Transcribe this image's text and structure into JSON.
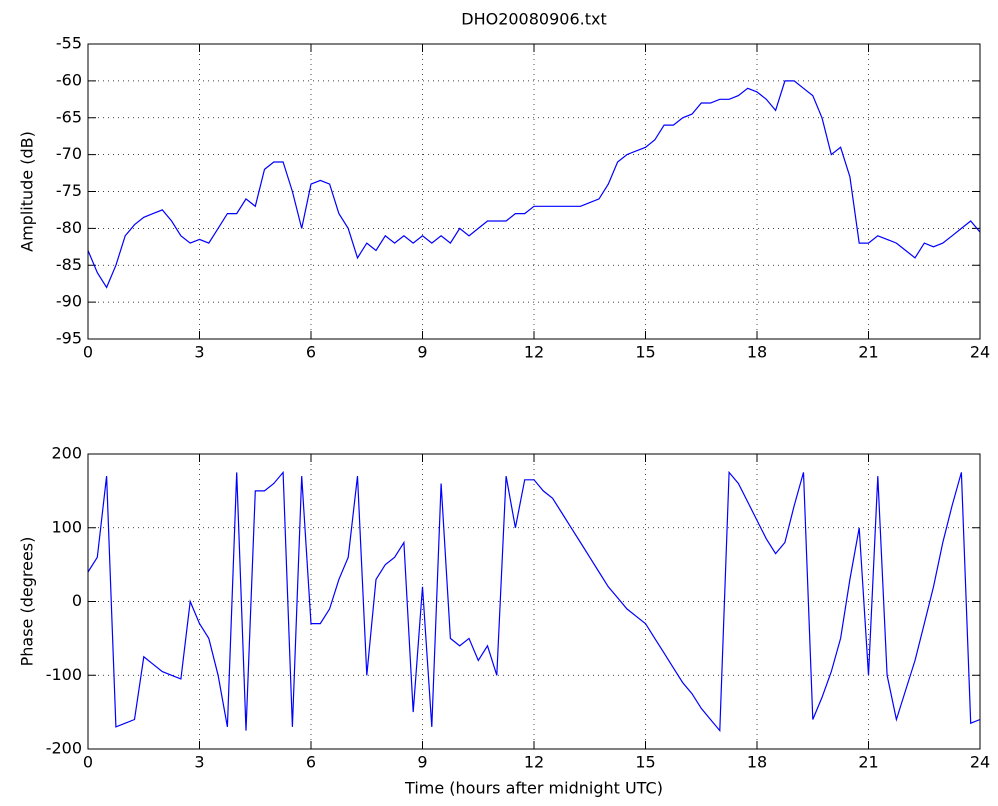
{
  "chart_data": [
    {
      "type": "line",
      "title": "DHO20080906.txt",
      "ylabel": "Amplitude (dB)",
      "x": [
        0,
        0.25,
        0.5,
        0.75,
        1,
        1.25,
        1.5,
        1.75,
        2,
        2.25,
        2.5,
        2.75,
        3,
        3.25,
        3.5,
        3.75,
        4,
        4.25,
        4.5,
        4.75,
        5,
        5.25,
        5.5,
        5.75,
        6,
        6.25,
        6.5,
        6.75,
        7,
        7.25,
        7.5,
        7.75,
        8,
        8.25,
        8.5,
        8.75,
        9,
        9.25,
        9.5,
        9.75,
        10,
        10.25,
        10.5,
        10.75,
        11,
        11.25,
        11.5,
        11.75,
        12,
        12.25,
        12.5,
        12.75,
        13,
        13.25,
        13.5,
        13.75,
        14,
        14.25,
        14.5,
        14.75,
        15,
        15.25,
        15.5,
        15.75,
        16,
        16.25,
        16.5,
        16.75,
        17,
        17.25,
        17.5,
        17.75,
        18,
        18.25,
        18.5,
        18.75,
        19,
        19.25,
        19.5,
        19.75,
        20,
        20.25,
        20.5,
        20.75,
        21,
        21.25,
        21.5,
        21.75,
        22,
        22.25,
        22.5,
        22.75,
        23,
        23.25,
        23.5,
        23.75,
        24
      ],
      "series": [
        {
          "color": "#0000ff",
          "values": [
            -83,
            -86,
            -88,
            -85,
            -81,
            -79.5,
            -78.5,
            -78,
            -77.5,
            -79,
            -81,
            -82,
            -81.5,
            -82,
            -80,
            -78,
            -78,
            -76,
            -77,
            -72,
            -71,
            -71,
            -75,
            -80,
            -74,
            -73.5,
            -74,
            -78,
            -80,
            -84,
            -82,
            -83,
            -81,
            -82,
            -81,
            -82,
            -81,
            -82,
            -81,
            -82,
            -80,
            -81,
            -80,
            -79,
            -79,
            -79,
            -78,
            -78,
            -77,
            -77,
            -77,
            -77,
            -77,
            -77,
            -76.5,
            -76,
            -74,
            -71,
            -70,
            -69.5,
            -69,
            -68,
            -66,
            -66,
            -65,
            -64.5,
            -63,
            -63,
            -62.5,
            -62.5,
            -62,
            -61,
            -61.5,
            -62.5,
            -64,
            -60,
            -60,
            -61,
            -62,
            -65,
            -70,
            -69,
            -73,
            -82,
            -82,
            -81,
            -81.5,
            -82,
            -83,
            -84,
            -82,
            -82.5,
            -82,
            -81,
            -80,
            -79,
            -80.5
          ]
        }
      ],
      "xlim": [
        0,
        24
      ],
      "xticks": [
        0,
        3,
        6,
        9,
        12,
        15,
        18,
        21,
        24
      ],
      "ylim": [
        -95,
        -55
      ],
      "yticks": [
        -95,
        -90,
        -85,
        -80,
        -75,
        -70,
        -65,
        -60,
        -55
      ],
      "grid": true
    },
    {
      "type": "line",
      "ylabel": "Phase (degrees)",
      "xlabel": "Time (hours after midnight UTC)",
      "x": [
        0,
        0.25,
        0.5,
        0.75,
        1,
        1.25,
        1.5,
        1.75,
        2,
        2.25,
        2.5,
        2.75,
        3,
        3.25,
        3.5,
        3.75,
        4,
        4.25,
        4.5,
        4.75,
        5,
        5.25,
        5.5,
        5.75,
        6,
        6.25,
        6.5,
        6.75,
        7,
        7.25,
        7.5,
        7.75,
        8,
        8.25,
        8.5,
        8.75,
        9,
        9.25,
        9.5,
        9.75,
        10,
        10.25,
        10.5,
        10.75,
        11,
        11.25,
        11.5,
        11.75,
        12,
        12.25,
        12.5,
        12.75,
        13,
        13.25,
        13.5,
        13.75,
        14,
        14.25,
        14.5,
        14.75,
        15,
        15.25,
        15.5,
        15.75,
        16,
        16.25,
        16.5,
        16.75,
        17,
        17.25,
        17.5,
        17.75,
        18,
        18.25,
        18.5,
        18.75,
        19,
        19.25,
        19.5,
        19.75,
        20,
        20.25,
        20.5,
        20.75,
        21,
        21.25,
        21.5,
        21.75,
        22,
        22.25,
        22.5,
        22.75,
        23,
        23.25,
        23.5,
        23.75,
        24
      ],
      "series": [
        {
          "color": "#0000ff",
          "values": [
            40,
            60,
            170,
            -170,
            -165,
            -160,
            -75,
            -85,
            -95,
            -100,
            -105,
            0,
            -30,
            -50,
            -100,
            -170,
            175,
            -175,
            150,
            150,
            160,
            175,
            -170,
            170,
            -30,
            -30,
            -10,
            30,
            60,
            170,
            -100,
            30,
            50,
            60,
            80,
            -150,
            20,
            -170,
            160,
            -50,
            -60,
            -50,
            -80,
            -60,
            -100,
            170,
            100,
            165,
            165,
            150,
            140,
            120,
            100,
            80,
            60,
            40,
            20,
            5,
            -10,
            -20,
            -30,
            -50,
            -70,
            -90,
            -110,
            -125,
            -145,
            -160,
            -175,
            175,
            160,
            135,
            110,
            85,
            65,
            80,
            130,
            175,
            -160,
            -130,
            -95,
            -50,
            30,
            100,
            -100,
            170,
            -100,
            -160,
            -120,
            -80,
            -30,
            20,
            80,
            130,
            175,
            -165,
            -160
          ]
        }
      ],
      "xlim": [
        0,
        24
      ],
      "xticks": [
        0,
        3,
        6,
        9,
        12,
        15,
        18,
        21,
        24
      ],
      "ylim": [
        -200,
        200
      ],
      "yticks": [
        -200,
        -100,
        0,
        100,
        200
      ],
      "grid": true
    }
  ]
}
